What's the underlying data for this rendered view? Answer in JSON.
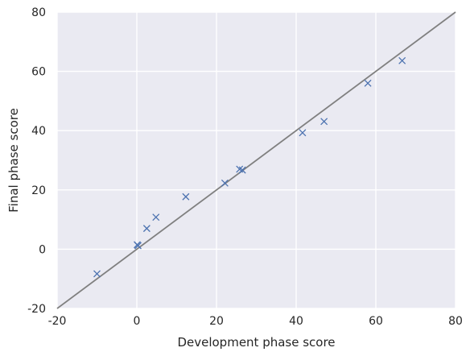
{
  "chart_data": {
    "type": "scatter",
    "title": "",
    "xlabel": "Development phase score",
    "ylabel": "Final phase score",
    "xlim": [
      -20,
      80
    ],
    "ylim": [
      -20,
      80
    ],
    "xticks": [
      "-20",
      "0",
      "20",
      "40",
      "60",
      "80"
    ],
    "yticks": [
      "-20",
      "0",
      "20",
      "40",
      "60",
      "80"
    ],
    "grid": true,
    "background": "#eaeaf2",
    "grid_color": "#ffffff",
    "series": [
      {
        "marker": "x",
        "color": "#4c72b0",
        "points": [
          {
            "x": -10,
            "y": -8.3
          },
          {
            "x": 0.1,
            "y": 1.5
          },
          {
            "x": 0.3,
            "y": 1.2
          },
          {
            "x": 2.5,
            "y": 7
          },
          {
            "x": 4.8,
            "y": 10.8
          },
          {
            "x": 12.3,
            "y": 17.7
          },
          {
            "x": 22.1,
            "y": 22.3
          },
          {
            "x": 25.8,
            "y": 27
          },
          {
            "x": 26.5,
            "y": 26.7
          },
          {
            "x": 41.6,
            "y": 39.3
          },
          {
            "x": 47,
            "y": 43.1
          },
          {
            "x": 58,
            "y": 56
          },
          {
            "x": 66.6,
            "y": 63.6
          }
        ]
      }
    ],
    "reference_line": {
      "from": [
        -20,
        -20
      ],
      "to": [
        80,
        80
      ],
      "color": "#808080"
    }
  }
}
